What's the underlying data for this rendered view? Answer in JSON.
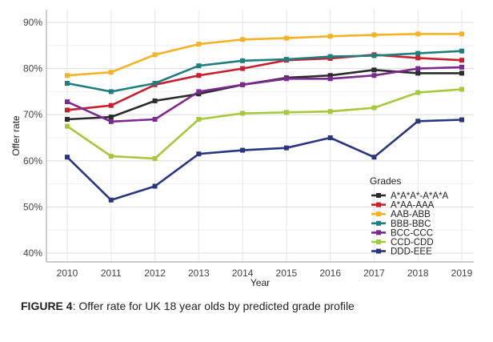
{
  "chart_data": {
    "type": "line",
    "x": [
      2010,
      2011,
      2012,
      2013,
      2014,
      2015,
      2016,
      2017,
      2018,
      2019
    ],
    "ylim": [
      38,
      93
    ],
    "yticks": [
      "40%",
      "50%",
      "60%",
      "70%",
      "80%",
      "90%"
    ],
    "ytick_values": [
      40,
      50,
      60,
      70,
      80,
      90
    ],
    "xlabel": "Year",
    "ylabel": "Offer rate",
    "legend_title": "Grades",
    "legend_position": "bottom-right",
    "grid": true,
    "series": [
      {
        "name": "A*A*A*-A*A*A",
        "color": "#2b2b2b",
        "values": [
          69.0,
          69.5,
          73.0,
          74.5,
          76.5,
          78.0,
          78.5,
          79.7,
          79.0,
          79.0
        ]
      },
      {
        "name": "A*AA-AAA",
        "color": "#c8202f",
        "values": [
          71.0,
          72.0,
          76.5,
          78.5,
          80.0,
          81.8,
          82.2,
          83.0,
          82.3,
          81.8
        ]
      },
      {
        "name": "AAB-ABB",
        "color": "#f4b227",
        "values": [
          78.5,
          79.2,
          83.0,
          85.3,
          86.3,
          86.6,
          87.0,
          87.3,
          87.5,
          87.5
        ]
      },
      {
        "name": "BBB-BBC",
        "color": "#1f7f7f",
        "values": [
          76.8,
          75.0,
          76.8,
          80.6,
          81.7,
          82.0,
          82.6,
          82.8,
          83.3,
          83.8
        ]
      },
      {
        "name": "BCC-CCC",
        "color": "#7b2a8e",
        "values": [
          72.8,
          68.5,
          69.0,
          75.0,
          76.5,
          77.8,
          77.8,
          78.5,
          80.0,
          80.3
        ]
      },
      {
        "name": "CCD-CDD",
        "color": "#a6c83a",
        "values": [
          67.5,
          61.0,
          60.5,
          69.0,
          70.3,
          70.5,
          70.7,
          71.5,
          74.8,
          75.5
        ]
      },
      {
        "name": "DDD-EEE",
        "color": "#2a3580",
        "values": [
          60.8,
          51.5,
          54.5,
          61.5,
          62.3,
          62.8,
          65.0,
          60.8,
          68.6,
          68.9
        ]
      }
    ]
  },
  "caption": {
    "lead": "FIGURE 4",
    "text": ": Offer rate for UK 18 year olds by predicted grade profile"
  }
}
